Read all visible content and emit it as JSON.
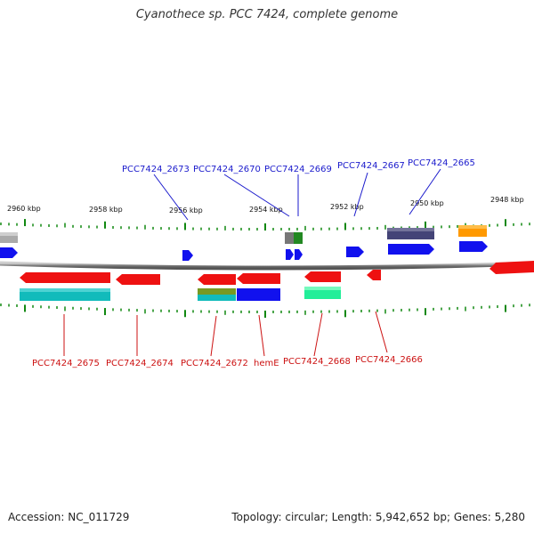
{
  "title": "Cyanothece sp. PCC 7424, complete genome",
  "accession": "Accession: NC_011729",
  "topology": "Topology: circular; Length: 5,942,652 bp; Genes: 5,280",
  "kbp_labels": [
    "2960 kbp",
    "2958 kbp",
    "2956 kbp",
    "2954 kbp",
    "2952 kbp",
    "2950 kbp",
    "2948 kbp"
  ],
  "top_genes": [
    "PCC7424_2673",
    "PCC7424_2670",
    "PCC7424_2669",
    "PCC7424_2667",
    "PCC7424_2665"
  ],
  "bottom_genes": [
    "PCC7424_2675",
    "PCC7424_2674",
    "PCC7424_2672",
    "hemE",
    "PCC7424_2668",
    "PCC7424_2666"
  ],
  "colors": {
    "red": "#ee1111",
    "blue": "#1111ee",
    "cyan": "#11bbbb",
    "green": "#117711",
    "gray": "#888888",
    "navy": "#444477",
    "orange": "#ff9900",
    "mint": "#22ee99",
    "olive": "#779922",
    "tick": "#118811",
    "top_label": "#1a1acc",
    "bottom_label": "#cc1111"
  }
}
